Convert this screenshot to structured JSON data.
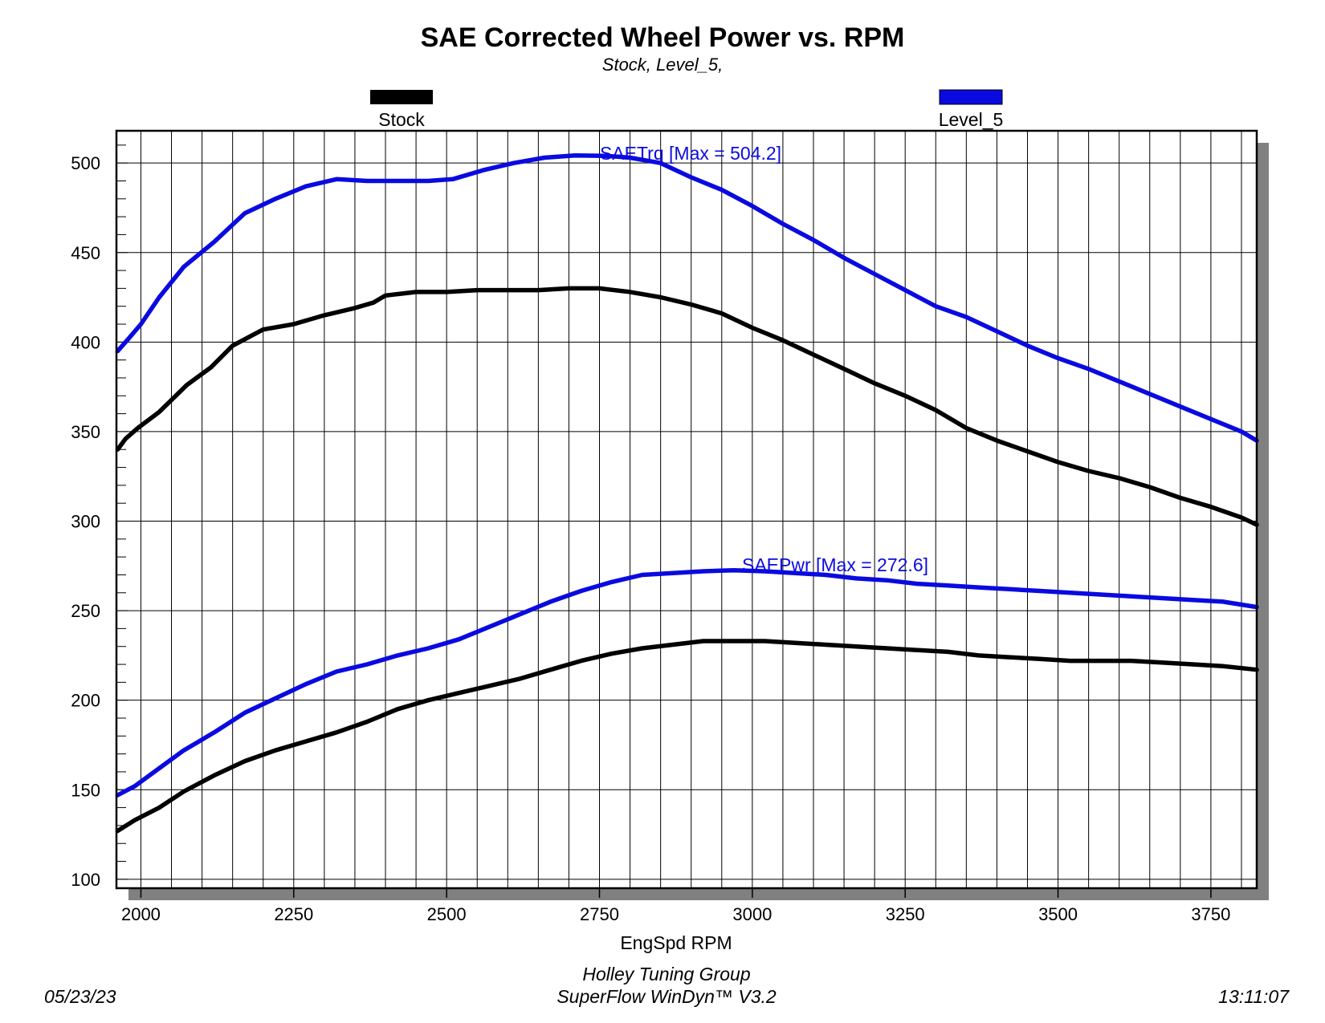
{
  "chart_data": {
    "type": "line",
    "title": "SAE Corrected Wheel Power vs. RPM",
    "subtitle": "Stock, Level_5,",
    "xlabel": "EngSpd RPM",
    "ylabel": "",
    "xlim": [
      1960,
      3825
    ],
    "ylim": [
      95,
      518
    ],
    "x_ticks": [
      2000,
      2250,
      2500,
      2750,
      3000,
      3250,
      3500,
      3750
    ],
    "y_ticks": [
      100,
      150,
      200,
      250,
      300,
      350,
      400,
      450,
      500
    ],
    "legend": [
      {
        "name": "Stock",
        "color": "#000000"
      },
      {
        "name": "Level_5",
        "color": "#0a0ae0"
      }
    ],
    "annotations": {
      "torque": "SAETrq [Max = 504.2]",
      "power": "SAEPwr [Max = 272.6]"
    },
    "series": [
      {
        "name": "Stock SAETrq",
        "legend": "Stock",
        "color": "#000000",
        "points": [
          [
            1962,
            340
          ],
          [
            1975,
            346
          ],
          [
            1995,
            352
          ],
          [
            2030,
            361
          ],
          [
            2075,
            376
          ],
          [
            2115,
            386
          ],
          [
            2150,
            398
          ],
          [
            2200,
            407
          ],
          [
            2250,
            410
          ],
          [
            2300,
            415
          ],
          [
            2350,
            419
          ],
          [
            2380,
            422
          ],
          [
            2400,
            426
          ],
          [
            2450,
            428
          ],
          [
            2500,
            428
          ],
          [
            2550,
            429
          ],
          [
            2600,
            429
          ],
          [
            2650,
            429
          ],
          [
            2700,
            430
          ],
          [
            2750,
            430
          ],
          [
            2800,
            428
          ],
          [
            2850,
            425
          ],
          [
            2900,
            421
          ],
          [
            2950,
            416
          ],
          [
            3000,
            408
          ],
          [
            3050,
            401
          ],
          [
            3100,
            393
          ],
          [
            3150,
            385
          ],
          [
            3200,
            377
          ],
          [
            3250,
            370
          ],
          [
            3300,
            362
          ],
          [
            3350,
            352
          ],
          [
            3400,
            345
          ],
          [
            3450,
            339
          ],
          [
            3500,
            333
          ],
          [
            3550,
            328
          ],
          [
            3600,
            324
          ],
          [
            3650,
            319
          ],
          [
            3700,
            313
          ],
          [
            3750,
            308
          ],
          [
            3800,
            302
          ],
          [
            3825,
            298
          ]
        ]
      },
      {
        "name": "Level_5 SAETrq",
        "legend": "Level_5",
        "color": "#0a0ae0",
        "points": [
          [
            1962,
            395
          ],
          [
            1980,
            402
          ],
          [
            2000,
            410
          ],
          [
            2030,
            425
          ],
          [
            2070,
            442
          ],
          [
            2120,
            456
          ],
          [
            2170,
            472
          ],
          [
            2220,
            480
          ],
          [
            2270,
            487
          ],
          [
            2320,
            491
          ],
          [
            2370,
            490
          ],
          [
            2420,
            490
          ],
          [
            2470,
            490
          ],
          [
            2510,
            491
          ],
          [
            2560,
            496
          ],
          [
            2610,
            500
          ],
          [
            2660,
            503
          ],
          [
            2710,
            504.2
          ],
          [
            2760,
            504
          ],
          [
            2800,
            503
          ],
          [
            2850,
            500
          ],
          [
            2900,
            492
          ],
          [
            2950,
            485
          ],
          [
            3000,
            476
          ],
          [
            3050,
            466
          ],
          [
            3100,
            457
          ],
          [
            3150,
            447
          ],
          [
            3200,
            438
          ],
          [
            3250,
            429
          ],
          [
            3300,
            420
          ],
          [
            3350,
            414
          ],
          [
            3400,
            406
          ],
          [
            3450,
            398
          ],
          [
            3500,
            391
          ],
          [
            3550,
            385
          ],
          [
            3600,
            378
          ],
          [
            3650,
            371
          ],
          [
            3700,
            364
          ],
          [
            3750,
            357
          ],
          [
            3800,
            350
          ],
          [
            3825,
            345
          ]
        ]
      },
      {
        "name": "Stock SAEPwr",
        "legend": "Stock",
        "color": "#000000",
        "points": [
          [
            1962,
            127
          ],
          [
            1990,
            133
          ],
          [
            2030,
            140
          ],
          [
            2070,
            149
          ],
          [
            2120,
            158
          ],
          [
            2170,
            166
          ],
          [
            2220,
            172
          ],
          [
            2270,
            177
          ],
          [
            2320,
            182
          ],
          [
            2370,
            188
          ],
          [
            2420,
            195
          ],
          [
            2470,
            200
          ],
          [
            2520,
            204
          ],
          [
            2570,
            208
          ],
          [
            2620,
            212
          ],
          [
            2670,
            217
          ],
          [
            2720,
            222
          ],
          [
            2770,
            226
          ],
          [
            2820,
            229
          ],
          [
            2870,
            231
          ],
          [
            2920,
            233
          ],
          [
            2970,
            233
          ],
          [
            3020,
            233
          ],
          [
            3070,
            232
          ],
          [
            3120,
            231
          ],
          [
            3170,
            230
          ],
          [
            3220,
            229
          ],
          [
            3270,
            228
          ],
          [
            3320,
            227
          ],
          [
            3370,
            225
          ],
          [
            3420,
            224
          ],
          [
            3470,
            223
          ],
          [
            3520,
            222
          ],
          [
            3570,
            222
          ],
          [
            3620,
            222
          ],
          [
            3670,
            221
          ],
          [
            3720,
            220
          ],
          [
            3770,
            219
          ],
          [
            3825,
            217
          ]
        ]
      },
      {
        "name": "Level_5 SAEPwr",
        "legend": "Level_5",
        "color": "#0a0ae0",
        "points": [
          [
            1962,
            147
          ],
          [
            1990,
            152
          ],
          [
            2030,
            162
          ],
          [
            2070,
            172
          ],
          [
            2120,
            182
          ],
          [
            2170,
            193
          ],
          [
            2220,
            201
          ],
          [
            2270,
            209
          ],
          [
            2320,
            216
          ],
          [
            2370,
            220
          ],
          [
            2420,
            225
          ],
          [
            2470,
            229
          ],
          [
            2520,
            234
          ],
          [
            2570,
            241
          ],
          [
            2620,
            248
          ],
          [
            2670,
            255
          ],
          [
            2720,
            261
          ],
          [
            2770,
            266
          ],
          [
            2820,
            270
          ],
          [
            2870,
            271
          ],
          [
            2920,
            272
          ],
          [
            2970,
            272.6
          ],
          [
            3020,
            272
          ],
          [
            3070,
            271
          ],
          [
            3120,
            270
          ],
          [
            3170,
            268
          ],
          [
            3220,
            267
          ],
          [
            3270,
            265
          ],
          [
            3320,
            264
          ],
          [
            3370,
            263
          ],
          [
            3420,
            262
          ],
          [
            3470,
            261
          ],
          [
            3520,
            260
          ],
          [
            3570,
            259
          ],
          [
            3620,
            258
          ],
          [
            3670,
            257
          ],
          [
            3720,
            256
          ],
          [
            3770,
            255
          ],
          [
            3825,
            252
          ]
        ]
      }
    ]
  },
  "footer": {
    "date": "05/23/23",
    "company": "Holley Tuning Group",
    "software": "SuperFlow WinDyn™  V3.2",
    "time": "13:11:07"
  }
}
